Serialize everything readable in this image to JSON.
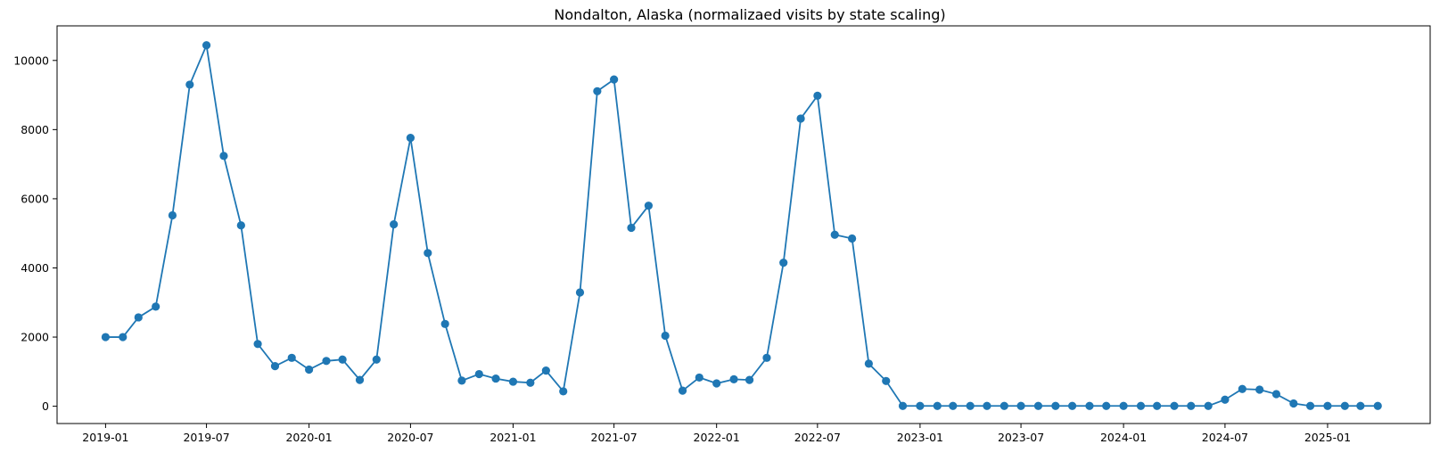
{
  "chart_data": {
    "type": "line",
    "title": "Nondalton, Alaska (normalizaed visits by state scaling)",
    "xlabel": "",
    "ylabel": "",
    "ylim": [
      -500,
      11000
    ],
    "xlim": [
      "2018-10-06",
      "2025-07-04"
    ],
    "grid": false,
    "legend": "none",
    "marker": "circle",
    "color": "#1f77b4",
    "x_ticks": [
      "2019-01",
      "2019-07",
      "2020-01",
      "2020-07",
      "2021-01",
      "2021-07",
      "2022-01",
      "2022-07",
      "2023-01",
      "2023-07",
      "2024-01",
      "2024-07",
      "2025-01"
    ],
    "y_ticks": [
      0,
      2000,
      4000,
      6000,
      8000,
      10000
    ],
    "series": [
      {
        "x": [
          "2019-01",
          "2019-02",
          "2019-03",
          "2019-04",
          "2019-05",
          "2019-06",
          "2019-07",
          "2019-08",
          "2019-09",
          "2019-10",
          "2019-11",
          "2019-12",
          "2020-01",
          "2020-02",
          "2020-03",
          "2020-04",
          "2020-05",
          "2020-06",
          "2020-07",
          "2020-08",
          "2020-09",
          "2020-10",
          "2020-11",
          "2020-12",
          "2021-01",
          "2021-02",
          "2021-03",
          "2021-04",
          "2021-05",
          "2021-06",
          "2021-07",
          "2021-08",
          "2021-09",
          "2021-10",
          "2021-11",
          "2021-12",
          "2022-01",
          "2022-02",
          "2022-03",
          "2022-04",
          "2022-05",
          "2022-06",
          "2022-07",
          "2022-08",
          "2022-09",
          "2022-10",
          "2022-11",
          "2022-12",
          "2023-01",
          "2023-02",
          "2023-03",
          "2023-04",
          "2023-05",
          "2023-06",
          "2023-07",
          "2023-08",
          "2023-09",
          "2023-10",
          "2023-11",
          "2023-12",
          "2024-01",
          "2024-02",
          "2024-03",
          "2024-04",
          "2024-05",
          "2024-06",
          "2024-07",
          "2024-08",
          "2024-09",
          "2024-10",
          "2024-11",
          "2024-12",
          "2025-01",
          "2025-02",
          "2025-03",
          "2025-04"
        ],
        "values": [
          2000,
          2000,
          2570,
          2880,
          5520,
          9300,
          10440,
          7240,
          5230,
          1800,
          1160,
          1400,
          1060,
          1310,
          1350,
          760,
          1350,
          5260,
          7760,
          4430,
          2380,
          740,
          930,
          800,
          710,
          680,
          1030,
          430,
          3290,
          9110,
          9450,
          5160,
          5800,
          2040,
          450,
          830,
          660,
          780,
          760,
          1400,
          4150,
          8320,
          8980,
          4960,
          4850,
          1230,
          730,
          10,
          10,
          10,
          10,
          10,
          10,
          10,
          10,
          10,
          10,
          10,
          10,
          10,
          10,
          10,
          10,
          10,
          10,
          10,
          190,
          500,
          480,
          350,
          80,
          10,
          10,
          10,
          10,
          10
        ]
      }
    ]
  }
}
